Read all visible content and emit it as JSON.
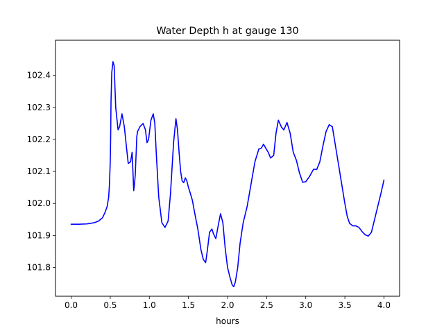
{
  "chart_data": {
    "type": "line",
    "title": "Water Depth h at gauge 130",
    "xlabel": "hours",
    "ylabel": "",
    "xlim": [
      -0.2,
      4.2
    ],
    "ylim": [
      101.71,
      102.51
    ],
    "x_ticks": [
      0.0,
      0.5,
      1.0,
      1.5,
      2.0,
      2.5,
      3.0,
      3.5,
      4.0
    ],
    "x_tick_labels": [
      "0.0",
      "0.5",
      "1.0",
      "1.5",
      "2.0",
      "2.5",
      "3.0",
      "3.5",
      "4.0"
    ],
    "y_ticks": [
      101.8,
      101.9,
      102.0,
      102.1,
      102.2,
      102.3,
      102.4
    ],
    "y_tick_labels": [
      "101.8",
      "101.9",
      "102.0",
      "102.1",
      "102.2",
      "102.3",
      "102.4"
    ],
    "grid": false,
    "legend": false,
    "series": [
      {
        "color": "#0000ff",
        "x": [
          0.0,
          0.1,
          0.2,
          0.3,
          0.35,
          0.4,
          0.43,
          0.46,
          0.48,
          0.49,
          0.5,
          0.505,
          0.51,
          0.52,
          0.535,
          0.55,
          0.57,
          0.6,
          0.62,
          0.65,
          0.68,
          0.71,
          0.73,
          0.76,
          0.78,
          0.8,
          0.81,
          0.82,
          0.84,
          0.85,
          0.88,
          0.92,
          0.95,
          0.97,
          0.99,
          1.02,
          1.05,
          1.07,
          1.09,
          1.12,
          1.16,
          1.2,
          1.24,
          1.27,
          1.31,
          1.34,
          1.36,
          1.38,
          1.4,
          1.42,
          1.44,
          1.46,
          1.48,
          1.5,
          1.52,
          1.55,
          1.58,
          1.62,
          1.66,
          1.69,
          1.72,
          1.74,
          1.77,
          1.8,
          1.82,
          1.85,
          1.88,
          1.91,
          1.94,
          1.97,
          2.0,
          2.03,
          2.06,
          2.08,
          2.1,
          2.13,
          2.16,
          2.2,
          2.25,
          2.3,
          2.35,
          2.4,
          2.43,
          2.46,
          2.49,
          2.52,
          2.55,
          2.59,
          2.62,
          2.65,
          2.69,
          2.72,
          2.76,
          2.8,
          2.84,
          2.88,
          2.92,
          2.96,
          3.0,
          3.05,
          3.1,
          3.14,
          3.18,
          3.22,
          3.26,
          3.3,
          3.34,
          3.38,
          3.42,
          3.46,
          3.5,
          3.53,
          3.56,
          3.6,
          3.64,
          3.68,
          3.72,
          3.76,
          3.8,
          3.84,
          3.88,
          3.92,
          3.96,
          4.0
        ],
        "y": [
          101.935,
          101.935,
          101.936,
          101.94,
          101.945,
          101.955,
          101.97,
          101.99,
          102.02,
          102.06,
          102.13,
          102.2,
          102.32,
          102.41,
          102.443,
          102.43,
          102.3,
          102.23,
          102.24,
          102.28,
          102.24,
          102.17,
          102.125,
          102.13,
          102.16,
          102.04,
          102.06,
          102.09,
          102.21,
          102.225,
          102.24,
          102.25,
          102.23,
          102.19,
          102.2,
          102.26,
          102.28,
          102.25,
          102.15,
          102.02,
          101.94,
          101.925,
          101.945,
          102.03,
          102.19,
          102.265,
          102.23,
          102.16,
          102.1,
          102.07,
          102.065,
          102.08,
          102.07,
          102.05,
          102.035,
          102.01,
          101.97,
          101.92,
          101.855,
          101.825,
          101.815,
          101.85,
          101.91,
          101.92,
          101.905,
          101.89,
          101.93,
          101.968,
          101.94,
          101.86,
          101.8,
          101.77,
          101.745,
          101.74,
          101.755,
          101.8,
          101.875,
          101.94,
          101.99,
          102.06,
          102.13,
          102.17,
          102.172,
          102.185,
          102.172,
          102.16,
          102.142,
          102.15,
          102.22,
          102.26,
          102.238,
          102.23,
          102.253,
          102.22,
          102.16,
          102.135,
          102.095,
          102.066,
          102.068,
          102.085,
          102.107,
          102.106,
          102.13,
          102.18,
          102.225,
          102.246,
          102.24,
          102.18,
          102.12,
          102.06,
          102.0,
          101.96,
          101.938,
          101.93,
          101.93,
          101.925,
          101.912,
          101.902,
          101.898,
          101.91,
          101.95,
          101.99,
          102.03,
          102.073
        ]
      }
    ]
  }
}
